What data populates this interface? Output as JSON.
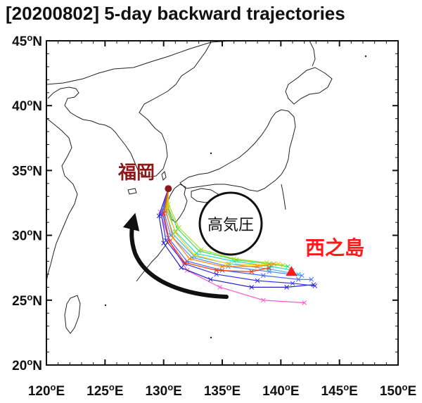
{
  "title": "[20200802] 5-day backward trajectories",
  "axes": {
    "lon_ticks": [
      "120oE",
      "125oE",
      "130oE",
      "135oE",
      "140oE",
      "145oE",
      "150oE"
    ],
    "lat_ticks": [
      "20oN",
      "25oN",
      "30oN",
      "35oN",
      "40oN",
      "45oN"
    ],
    "lon_range": [
      120,
      150
    ],
    "lat_range": [
      20,
      45
    ]
  },
  "labels": {
    "fukuoka": "福岡",
    "nishinoshima": "西之島",
    "high_pressure": "高気圧"
  },
  "colors": {
    "fukuoka": "#8b1a1a",
    "nishinoshima": "#ff1a1a",
    "arrow": "#111111"
  },
  "markers": {
    "fukuoka": {
      "lon": 130.4,
      "lat": 33.6
    },
    "nishinoshima": {
      "lon": 140.9,
      "lat": 27.2
    }
  },
  "trajectories": [
    {
      "color": "#ff55cc",
      "points": [
        [
          130.4,
          33.6
        ],
        [
          129.7,
          31.8
        ],
        [
          130.5,
          29.5
        ],
        [
          132.0,
          27.3
        ],
        [
          134.8,
          26.0
        ],
        [
          138.5,
          25.0
        ],
        [
          142.0,
          24.8
        ]
      ]
    },
    {
      "color": "#2222cc",
      "points": [
        [
          130.4,
          33.6
        ],
        [
          129.6,
          31.5
        ],
        [
          130.0,
          29.4
        ],
        [
          131.5,
          27.5
        ],
        [
          134.0,
          26.6
        ],
        [
          137.5,
          26.0
        ],
        [
          140.5,
          26.0
        ],
        [
          142.8,
          26.2
        ]
      ]
    },
    {
      "color": "#3333ee",
      "points": [
        [
          130.4,
          33.6
        ],
        [
          129.8,
          31.6
        ],
        [
          130.2,
          29.6
        ],
        [
          131.8,
          27.8
        ],
        [
          134.5,
          27.0
        ],
        [
          138.0,
          26.5
        ],
        [
          141.0,
          26.3
        ],
        [
          142.9,
          26.1
        ]
      ]
    },
    {
      "color": "#4466ff",
      "points": [
        [
          130.4,
          33.6
        ],
        [
          129.9,
          31.7
        ],
        [
          130.4,
          29.8
        ],
        [
          132.0,
          28.0
        ],
        [
          135.0,
          27.3
        ],
        [
          138.5,
          26.9
        ],
        [
          141.5,
          26.6
        ],
        [
          142.6,
          26.6
        ]
      ]
    },
    {
      "color": "#5588ff",
      "points": [
        [
          130.4,
          33.6
        ],
        [
          130.0,
          31.9
        ],
        [
          130.6,
          30.0
        ],
        [
          132.4,
          28.3
        ],
        [
          135.5,
          27.6
        ],
        [
          139.0,
          27.2
        ],
        [
          141.8,
          26.9
        ]
      ]
    },
    {
      "color": "#33bbee",
      "points": [
        [
          130.4,
          33.6
        ],
        [
          130.1,
          32.0
        ],
        [
          130.8,
          30.1
        ],
        [
          132.6,
          28.4
        ],
        [
          135.6,
          27.8
        ],
        [
          139.0,
          27.4
        ],
        [
          141.5,
          27.0
        ]
      ]
    },
    {
      "color": "#22ddcc",
      "points": [
        [
          130.4,
          33.6
        ],
        [
          130.2,
          32.1
        ],
        [
          131.0,
          30.3
        ],
        [
          132.8,
          28.6
        ],
        [
          136.0,
          28.0
        ],
        [
          139.2,
          27.6
        ],
        [
          141.0,
          27.3
        ]
      ]
    },
    {
      "color": "#33dd66",
      "points": [
        [
          130.4,
          33.6
        ],
        [
          130.3,
          32.3
        ],
        [
          131.2,
          30.5
        ],
        [
          133.0,
          28.8
        ],
        [
          136.2,
          28.1
        ],
        [
          139.0,
          27.8
        ],
        [
          140.6,
          27.6
        ]
      ]
    },
    {
      "color": "#aadd22",
      "points": [
        [
          130.4,
          33.6
        ],
        [
          130.4,
          32.4
        ],
        [
          131.3,
          30.6
        ],
        [
          133.2,
          28.9
        ],
        [
          136.0,
          28.2
        ],
        [
          138.8,
          27.9
        ],
        [
          140.2,
          27.7
        ]
      ]
    },
    {
      "color": "#ffcc00",
      "points": [
        [
          130.4,
          33.6
        ],
        [
          130.3,
          32.2
        ],
        [
          131.0,
          30.2
        ],
        [
          132.6,
          28.5
        ],
        [
          135.5,
          27.8
        ],
        [
          138.5,
          27.7
        ],
        [
          139.8,
          27.8
        ]
      ]
    },
    {
      "color": "#ff8800",
      "points": [
        [
          130.4,
          33.6
        ],
        [
          130.2,
          31.9
        ],
        [
          130.8,
          29.8
        ],
        [
          132.2,
          28.2
        ],
        [
          135.0,
          27.6
        ],
        [
          138.0,
          27.6
        ],
        [
          139.4,
          27.8
        ]
      ]
    },
    {
      "color": "#ff3300",
      "points": [
        [
          130.4,
          33.6
        ],
        [
          130.0,
          31.7
        ],
        [
          130.5,
          29.5
        ],
        [
          131.8,
          27.9
        ],
        [
          134.5,
          27.3
        ],
        [
          137.5,
          27.2
        ],
        [
          139.0,
          27.5
        ]
      ]
    }
  ]
}
